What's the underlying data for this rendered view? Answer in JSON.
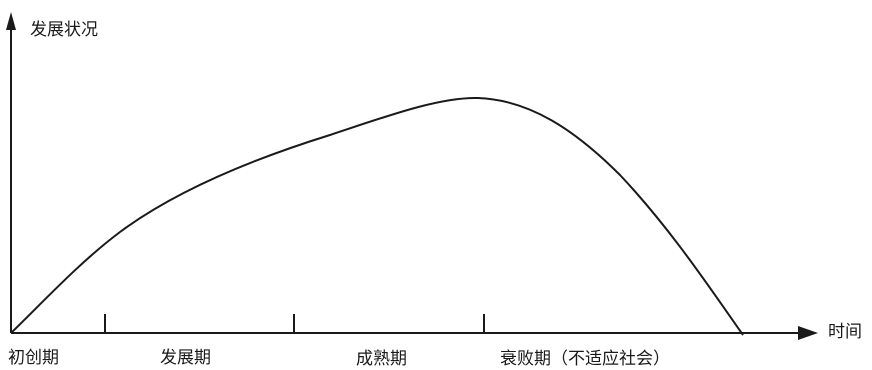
{
  "diagram": {
    "y_axis_label": "发展状况",
    "x_axis_label": "时间",
    "stages": [
      {
        "label": "初创期"
      },
      {
        "label": "发展期"
      },
      {
        "label": "成熟期"
      },
      {
        "label": "衰败期（不适应社会）"
      }
    ]
  },
  "colors": {
    "stroke": "#1a1a1a",
    "background": "#ffffff"
  }
}
